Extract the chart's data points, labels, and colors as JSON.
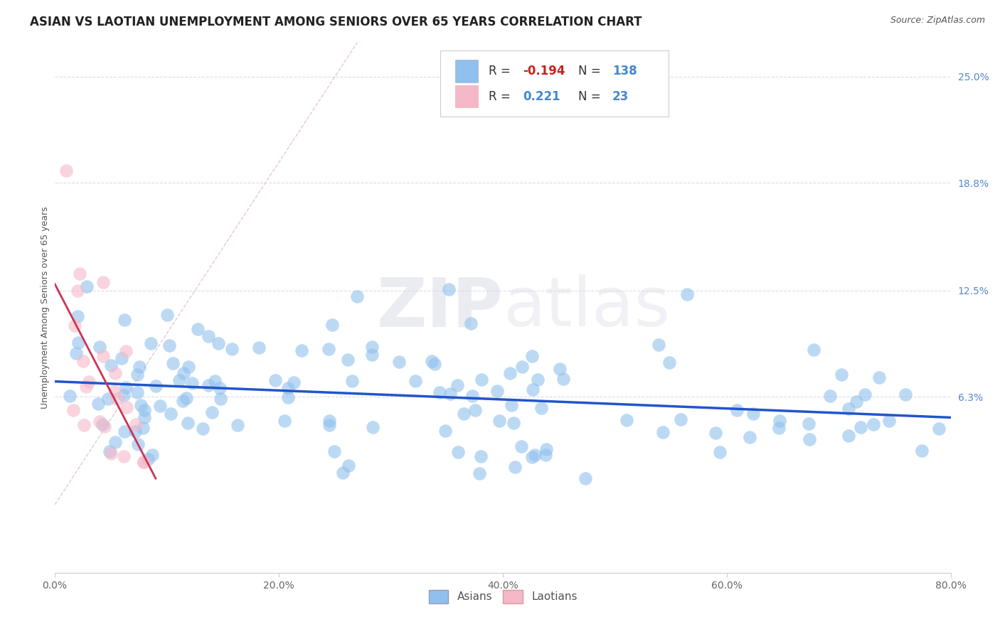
{
  "title": "ASIAN VS LAOTIAN UNEMPLOYMENT AMONG SENIORS OVER 65 YEARS CORRELATION CHART",
  "source": "Source: ZipAtlas.com",
  "ylabel": "Unemployment Among Seniors over 65 years",
  "xlabel_ticks": [
    "0.0%",
    "20.0%",
    "40.0%",
    "60.0%",
    "80.0%"
  ],
  "xlabel_vals": [
    0.0,
    0.2,
    0.4,
    0.6,
    0.8
  ],
  "ylabel_ticks": [
    "6.3%",
    "12.5%",
    "18.8%",
    "25.0%"
  ],
  "ylabel_vals": [
    0.063,
    0.125,
    0.188,
    0.25
  ],
  "xlim": [
    0.0,
    0.8
  ],
  "ylim": [
    -0.04,
    0.27
  ],
  "asian_R": -0.194,
  "asian_N": 138,
  "laotian_R": 0.221,
  "laotian_N": 23,
  "asian_color": "#90C0EE",
  "laotian_color": "#F5B8C8",
  "asian_trend_color": "#2255CC",
  "laotian_trend_color": "#CC3355",
  "ref_line_color": "#E8C0C8",
  "grid_color": "#CCCCDD",
  "title_fontsize": 12,
  "label_fontsize": 9,
  "tick_fontsize": 10,
  "watermark_zip": "ZIP",
  "watermark_atlas": "atlas",
  "background_color": "#FFFFFF",
  "legend_R1": "-0.194",
  "legend_N1": "138",
  "legend_R2": "0.221",
  "legend_N2": "23"
}
